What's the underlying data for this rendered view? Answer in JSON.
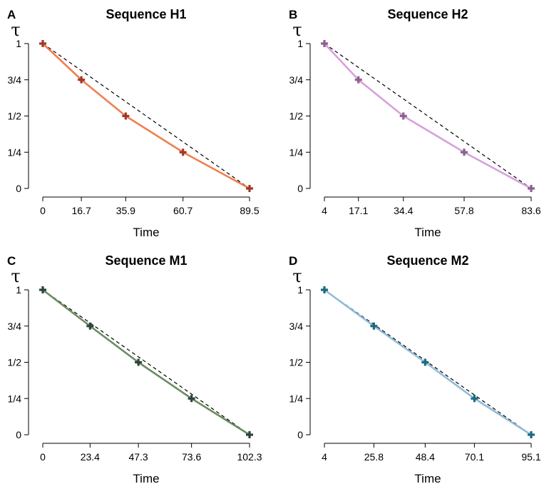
{
  "chart_data": [
    {
      "type": "line",
      "panel": "A",
      "title": "Sequence H1",
      "ylabel": "τ",
      "xlabel": "Time",
      "y_ticks": [
        "1",
        "3/4",
        "1/2",
        "1/4",
        "0"
      ],
      "y_tick_values": [
        1,
        0.75,
        0.5,
        0.25,
        0
      ],
      "x_ticks": [
        "0",
        "16.7",
        "35.9",
        "60.7",
        "89.5"
      ],
      "x": [
        0,
        16.7,
        35.9,
        60.7,
        89.5
      ],
      "y": [
        1,
        0.75,
        0.5,
        0.25,
        0
      ],
      "reference": {
        "x": [
          0,
          89.5
        ],
        "y": [
          1,
          0
        ]
      },
      "xlim": [
        0,
        89.5
      ],
      "ylim": [
        0,
        1
      ],
      "line_color": "#f08050",
      "point_color": "#a03828"
    },
    {
      "type": "line",
      "panel": "B",
      "title": "Sequence H2",
      "ylabel": "τ",
      "xlabel": "Time",
      "y_ticks": [
        "1",
        "3/4",
        "1/2",
        "1/4",
        "0"
      ],
      "y_tick_values": [
        1,
        0.75,
        0.5,
        0.25,
        0
      ],
      "x_ticks": [
        "4",
        "17.1",
        "34.4",
        "57.8",
        "83.6"
      ],
      "x": [
        4,
        17.1,
        34.4,
        57.8,
        83.6
      ],
      "y": [
        1,
        0.75,
        0.5,
        0.25,
        0
      ],
      "reference": {
        "x": [
          4,
          83.6
        ],
        "y": [
          1,
          0
        ]
      },
      "xlim": [
        4,
        83.6
      ],
      "ylim": [
        0,
        1
      ],
      "line_color": "#d8a0dc",
      "point_color": "#8c6090"
    },
    {
      "type": "line",
      "panel": "C",
      "title": "Sequence M1",
      "ylabel": "τ",
      "xlabel": "Time",
      "y_ticks": [
        "1",
        "3/4",
        "1/2",
        "1/4",
        "0"
      ],
      "y_tick_values": [
        1,
        0.75,
        0.5,
        0.25,
        0
      ],
      "x_ticks": [
        "0",
        "23.4",
        "47.3",
        "73.6",
        "102.3"
      ],
      "x": [
        0,
        23.4,
        47.3,
        73.6,
        102.3
      ],
      "y": [
        1,
        0.75,
        0.5,
        0.25,
        0
      ],
      "reference": {
        "x": [
          0,
          102.3
        ],
        "y": [
          1,
          0
        ]
      },
      "xlim": [
        0,
        102.3
      ],
      "ylim": [
        0,
        1
      ],
      "line_color": "#6a8c60",
      "point_color": "#2c4440"
    },
    {
      "type": "line",
      "panel": "D",
      "title": "Sequence M2",
      "ylabel": "τ",
      "xlabel": "Time",
      "y_ticks": [
        "1",
        "3/4",
        "1/2",
        "1/4",
        "0"
      ],
      "y_tick_values": [
        1,
        0.75,
        0.5,
        0.25,
        0
      ],
      "x_ticks": [
        "4",
        "25.8",
        "48.4",
        "70.1",
        "95.1"
      ],
      "x": [
        4,
        25.8,
        48.4,
        70.1,
        95.1
      ],
      "y": [
        1,
        0.75,
        0.5,
        0.25,
        0
      ],
      "reference": {
        "x": [
          4,
          95.1
        ],
        "y": [
          1,
          0
        ]
      },
      "xlim": [
        4,
        95.1
      ],
      "ylim": [
        0,
        1
      ],
      "line_color": "#90bcd8",
      "point_color": "#1a6a80"
    }
  ]
}
